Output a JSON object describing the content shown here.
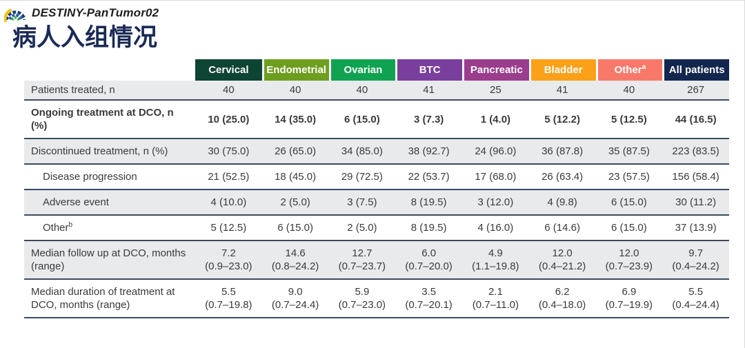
{
  "header": {
    "study_name": "DESTINY-PanTumor02"
  },
  "title": "病人入组情况",
  "colors": {
    "title_navy": "#1A2A55",
    "row_separator": "#3A4A5F",
    "row_gray": "#E9EAEC",
    "frame_border": "#D9D9D9",
    "logo_yellow": "#F5C40E",
    "logo_dark_blue": "#1C3C7E",
    "logo_mid_blue": "#2B5CA8",
    "logo_green": "#33A64C"
  },
  "table": {
    "columns": [
      {
        "label": "Cervical",
        "sup": "",
        "color": "#0E4433"
      },
      {
        "label": "Endometrial",
        "sup": "",
        "color": "#6E9E1F"
      },
      {
        "label": "Ovarian",
        "sup": "",
        "color": "#0FA351"
      },
      {
        "label": "BTC",
        "sup": "",
        "color": "#7A3E9D"
      },
      {
        "label": "Pancreatic",
        "sup": "",
        "color": "#9B3D8D"
      },
      {
        "label": "Bladder",
        "sup": "",
        "color": "#FBA019"
      },
      {
        "label": "Other",
        "sup": "a",
        "color": "#F8796A"
      },
      {
        "label": "All patients",
        "sup": "",
        "color": "#13274E"
      }
    ],
    "rows": [
      {
        "label": "Patients treated, n",
        "sup": "",
        "indent": false,
        "bold": false,
        "compact": true,
        "values": [
          "40",
          "40",
          "40",
          "41",
          "25",
          "41",
          "40",
          "267"
        ]
      },
      {
        "label": "Ongoing treatment at DCO, n (%)",
        "sup": "",
        "indent": false,
        "bold": true,
        "compact": false,
        "values": [
          "10 (25.0)",
          "14 (35.0)",
          "6 (15.0)",
          "3 (7.3)",
          "1 (4.0)",
          "5 (12.2)",
          "5 (12.5)",
          "44 (16.5)"
        ]
      },
      {
        "label": "Discontinued treatment, n (%)",
        "sup": "",
        "indent": false,
        "bold": false,
        "compact": false,
        "values": [
          "30 (75.0)",
          "26 (65.0)",
          "34 (85.0)",
          "38 (92.7)",
          "24 (96.0)",
          "36 (87.8)",
          "35 (87.5)",
          "223 (83.5)"
        ]
      },
      {
        "label": "Disease progression",
        "sup": "",
        "indent": true,
        "bold": false,
        "compact": false,
        "values": [
          "21 (52.5)",
          "18 (45.0)",
          "29 (72.5)",
          "22 (53.7)",
          "17 (68.0)",
          "26 (63.4)",
          "23 (57.5)",
          "156 (58.4)"
        ]
      },
      {
        "label": "Adverse event",
        "sup": "",
        "indent": true,
        "bold": false,
        "compact": false,
        "values": [
          "4 (10.0)",
          "2 (5.0)",
          "3 (7.5)",
          "8 (19.5)",
          "3 (12.0)",
          "4 (9.8)",
          "6 (15.0)",
          "30 (11.2)"
        ]
      },
      {
        "label": "Other",
        "sup": "b",
        "indent": true,
        "bold": false,
        "compact": false,
        "values": [
          "5 (12.5)",
          "6 (15.0)",
          "2 (5.0)",
          "8 (19.5)",
          "4 (16.0)",
          "6 (14.6)",
          "6 (15.0)",
          "37 (13.9)"
        ]
      },
      {
        "label": "Median follow up at DCO, months (range)",
        "sup": "",
        "indent": false,
        "bold": false,
        "compact": false,
        "values": [
          "7.2\n(0.9–23.0)",
          "14.6\n(0.8–24.2)",
          "12.7\n(0.7–23.7)",
          "6.0\n(0.7–20.0)",
          "4.9\n(1.1–19.8)",
          "12.0\n(0.4–21.2)",
          "12.0\n(0.7–23.9)",
          "9.7\n(0.4–24.2)"
        ]
      },
      {
        "label": "Median duration of treatment at DCO, months (range)",
        "sup": "",
        "indent": false,
        "bold": false,
        "compact": false,
        "values": [
          "5.5\n(0.7–19.8)",
          "9.0\n(0.7–24.4)",
          "5.9\n(0.7–23.0)",
          "3.5\n(0.7–20.1)",
          "2.1\n(0.7–11.0)",
          "6.2\n(0.4–18.0)",
          "6.9\n(0.7–19.9)",
          "5.5\n(0.4–24.4)"
        ]
      }
    ]
  }
}
